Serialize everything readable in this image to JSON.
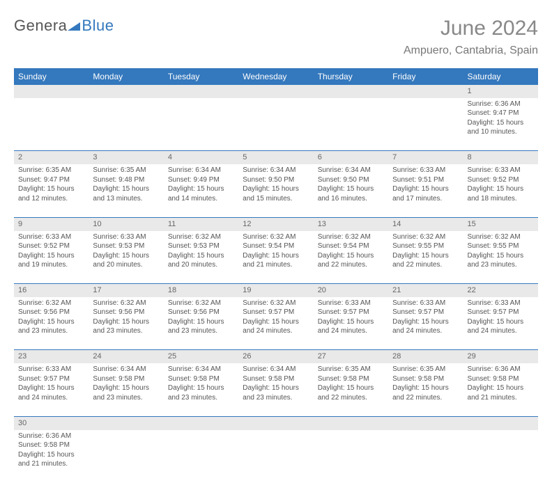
{
  "logo": {
    "g": "Genera",
    "b": "Blue"
  },
  "title": {
    "month": "June 2024",
    "location": "Ampuero, Cantabria, Spain"
  },
  "colors": {
    "header_bg": "#3478bd",
    "header_fg": "#ffffff",
    "daynum_bg": "#e9e9e9",
    "text": "#555555",
    "rule": "#3478bd"
  },
  "weekdays": [
    "Sunday",
    "Monday",
    "Tuesday",
    "Wednesday",
    "Thursday",
    "Friday",
    "Saturday"
  ],
  "days": {
    "1": {
      "sunrise": "Sunrise: 6:36 AM",
      "sunset": "Sunset: 9:47 PM",
      "day1": "Daylight: 15 hours",
      "day2": "and 10 minutes."
    },
    "2": {
      "sunrise": "Sunrise: 6:35 AM",
      "sunset": "Sunset: 9:47 PM",
      "day1": "Daylight: 15 hours",
      "day2": "and 12 minutes."
    },
    "3": {
      "sunrise": "Sunrise: 6:35 AM",
      "sunset": "Sunset: 9:48 PM",
      "day1": "Daylight: 15 hours",
      "day2": "and 13 minutes."
    },
    "4": {
      "sunrise": "Sunrise: 6:34 AM",
      "sunset": "Sunset: 9:49 PM",
      "day1": "Daylight: 15 hours",
      "day2": "and 14 minutes."
    },
    "5": {
      "sunrise": "Sunrise: 6:34 AM",
      "sunset": "Sunset: 9:50 PM",
      "day1": "Daylight: 15 hours",
      "day2": "and 15 minutes."
    },
    "6": {
      "sunrise": "Sunrise: 6:34 AM",
      "sunset": "Sunset: 9:50 PM",
      "day1": "Daylight: 15 hours",
      "day2": "and 16 minutes."
    },
    "7": {
      "sunrise": "Sunrise: 6:33 AM",
      "sunset": "Sunset: 9:51 PM",
      "day1": "Daylight: 15 hours",
      "day2": "and 17 minutes."
    },
    "8": {
      "sunrise": "Sunrise: 6:33 AM",
      "sunset": "Sunset: 9:52 PM",
      "day1": "Daylight: 15 hours",
      "day2": "and 18 minutes."
    },
    "9": {
      "sunrise": "Sunrise: 6:33 AM",
      "sunset": "Sunset: 9:52 PM",
      "day1": "Daylight: 15 hours",
      "day2": "and 19 minutes."
    },
    "10": {
      "sunrise": "Sunrise: 6:33 AM",
      "sunset": "Sunset: 9:53 PM",
      "day1": "Daylight: 15 hours",
      "day2": "and 20 minutes."
    },
    "11": {
      "sunrise": "Sunrise: 6:32 AM",
      "sunset": "Sunset: 9:53 PM",
      "day1": "Daylight: 15 hours",
      "day2": "and 20 minutes."
    },
    "12": {
      "sunrise": "Sunrise: 6:32 AM",
      "sunset": "Sunset: 9:54 PM",
      "day1": "Daylight: 15 hours",
      "day2": "and 21 minutes."
    },
    "13": {
      "sunrise": "Sunrise: 6:32 AM",
      "sunset": "Sunset: 9:54 PM",
      "day1": "Daylight: 15 hours",
      "day2": "and 22 minutes."
    },
    "14": {
      "sunrise": "Sunrise: 6:32 AM",
      "sunset": "Sunset: 9:55 PM",
      "day1": "Daylight: 15 hours",
      "day2": "and 22 minutes."
    },
    "15": {
      "sunrise": "Sunrise: 6:32 AM",
      "sunset": "Sunset: 9:55 PM",
      "day1": "Daylight: 15 hours",
      "day2": "and 23 minutes."
    },
    "16": {
      "sunrise": "Sunrise: 6:32 AM",
      "sunset": "Sunset: 9:56 PM",
      "day1": "Daylight: 15 hours",
      "day2": "and 23 minutes."
    },
    "17": {
      "sunrise": "Sunrise: 6:32 AM",
      "sunset": "Sunset: 9:56 PM",
      "day1": "Daylight: 15 hours",
      "day2": "and 23 minutes."
    },
    "18": {
      "sunrise": "Sunrise: 6:32 AM",
      "sunset": "Sunset: 9:56 PM",
      "day1": "Daylight: 15 hours",
      "day2": "and 23 minutes."
    },
    "19": {
      "sunrise": "Sunrise: 6:32 AM",
      "sunset": "Sunset: 9:57 PM",
      "day1": "Daylight: 15 hours",
      "day2": "and 24 minutes."
    },
    "20": {
      "sunrise": "Sunrise: 6:33 AM",
      "sunset": "Sunset: 9:57 PM",
      "day1": "Daylight: 15 hours",
      "day2": "and 24 minutes."
    },
    "21": {
      "sunrise": "Sunrise: 6:33 AM",
      "sunset": "Sunset: 9:57 PM",
      "day1": "Daylight: 15 hours",
      "day2": "and 24 minutes."
    },
    "22": {
      "sunrise": "Sunrise: 6:33 AM",
      "sunset": "Sunset: 9:57 PM",
      "day1": "Daylight: 15 hours",
      "day2": "and 24 minutes."
    },
    "23": {
      "sunrise": "Sunrise: 6:33 AM",
      "sunset": "Sunset: 9:57 PM",
      "day1": "Daylight: 15 hours",
      "day2": "and 24 minutes."
    },
    "24": {
      "sunrise": "Sunrise: 6:34 AM",
      "sunset": "Sunset: 9:58 PM",
      "day1": "Daylight: 15 hours",
      "day2": "and 23 minutes."
    },
    "25": {
      "sunrise": "Sunrise: 6:34 AM",
      "sunset": "Sunset: 9:58 PM",
      "day1": "Daylight: 15 hours",
      "day2": "and 23 minutes."
    },
    "26": {
      "sunrise": "Sunrise: 6:34 AM",
      "sunset": "Sunset: 9:58 PM",
      "day1": "Daylight: 15 hours",
      "day2": "and 23 minutes."
    },
    "27": {
      "sunrise": "Sunrise: 6:35 AM",
      "sunset": "Sunset: 9:58 PM",
      "day1": "Daylight: 15 hours",
      "day2": "and 22 minutes."
    },
    "28": {
      "sunrise": "Sunrise: 6:35 AM",
      "sunset": "Sunset: 9:58 PM",
      "day1": "Daylight: 15 hours",
      "day2": "and 22 minutes."
    },
    "29": {
      "sunrise": "Sunrise: 6:36 AM",
      "sunset": "Sunset: 9:58 PM",
      "day1": "Daylight: 15 hours",
      "day2": "and 21 minutes."
    },
    "30": {
      "sunrise": "Sunrise: 6:36 AM",
      "sunset": "Sunset: 9:58 PM",
      "day1": "Daylight: 15 hours",
      "day2": "and 21 minutes."
    }
  },
  "nums": {
    "1": "1",
    "2": "2",
    "3": "3",
    "4": "4",
    "5": "5",
    "6": "6",
    "7": "7",
    "8": "8",
    "9": "9",
    "10": "10",
    "11": "11",
    "12": "12",
    "13": "13",
    "14": "14",
    "15": "15",
    "16": "16",
    "17": "17",
    "18": "18",
    "19": "19",
    "20": "20",
    "21": "21",
    "22": "22",
    "23": "23",
    "24": "24",
    "25": "25",
    "26": "26",
    "27": "27",
    "28": "28",
    "29": "29",
    "30": "30"
  }
}
